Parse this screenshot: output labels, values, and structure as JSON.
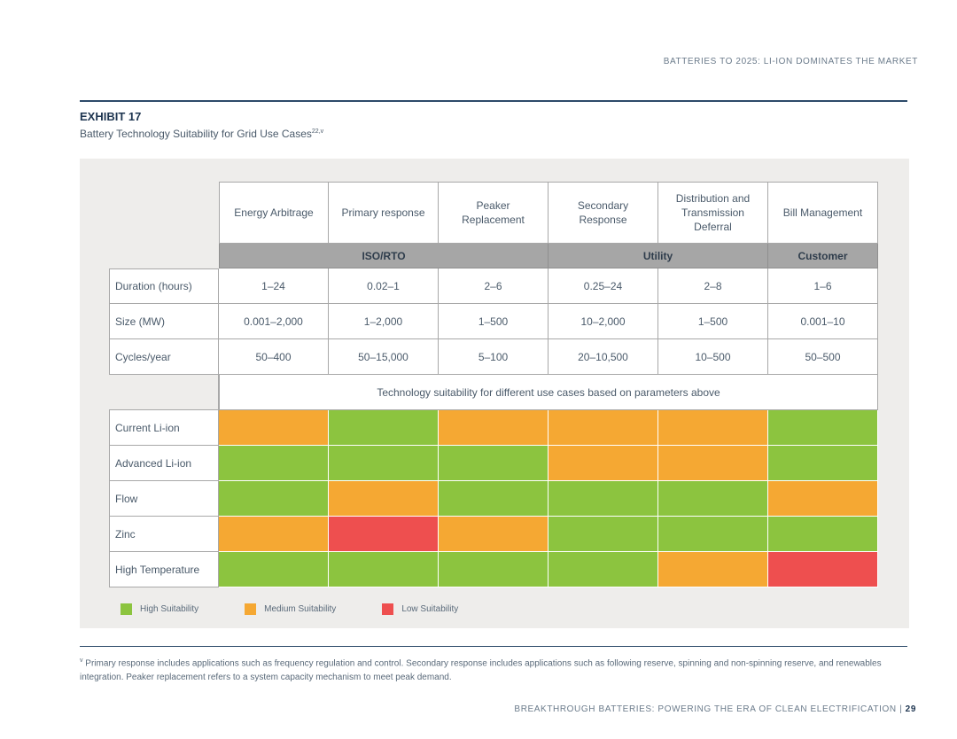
{
  "running_header": "BATTERIES TO 2025: LI-ION DOMINATES THE MARKET",
  "exhibit": {
    "label": "EXHIBIT 17",
    "title": "Battery Technology Suitability for Grid Use Cases",
    "title_superscript": "22,v"
  },
  "table": {
    "columns": [
      "Energy Arbitrage",
      "Primary response",
      "Peaker Replacement",
      "Secondary Response",
      "Distribution and Transmission Deferral",
      "Bill Management"
    ],
    "groups": [
      {
        "label": "ISO/RTO",
        "span": 3
      },
      {
        "label": "Utility",
        "span": 2
      },
      {
        "label": "Customer",
        "span": 1
      }
    ],
    "parameter_rows": [
      {
        "label": "Duration (hours)",
        "values": [
          "1–24",
          "0.02–1",
          "2–6",
          "0.25–24",
          "2–8",
          "1–6"
        ]
      },
      {
        "label": "Size (MW)",
        "values": [
          "0.001–2,000",
          "1–2,000",
          "1–500",
          "10–2,000",
          "1–500",
          "0.001–10"
        ]
      },
      {
        "label": "Cycles/year",
        "values": [
          "50–400",
          "50–15,000",
          "5–100",
          "20–10,500",
          "10–500",
          "50–500"
        ]
      }
    ],
    "suitability_note": "Technology suitability for different use cases based on parameters above",
    "technology_rows": [
      {
        "label": "Current Li-ion",
        "suitability": [
          "medium",
          "high",
          "medium",
          "medium",
          "medium",
          "high"
        ]
      },
      {
        "label": "Advanced Li-ion",
        "suitability": [
          "high",
          "high",
          "high",
          "medium",
          "medium",
          "high"
        ]
      },
      {
        "label": "Flow",
        "suitability": [
          "high",
          "medium",
          "high",
          "high",
          "high",
          "medium"
        ]
      },
      {
        "label": "Zinc",
        "suitability": [
          "medium",
          "low",
          "medium",
          "high",
          "high",
          "high"
        ]
      },
      {
        "label": "High Temperature",
        "suitability": [
          "high",
          "high",
          "high",
          "high",
          "medium",
          "low"
        ]
      }
    ]
  },
  "colors": {
    "high": "#8cc43f",
    "medium": "#f5a833",
    "low": "#ee4f4f"
  },
  "legend": [
    {
      "key": "high",
      "label": "High Suitability"
    },
    {
      "key": "medium",
      "label": "Medium Suitability"
    },
    {
      "key": "low",
      "label": "Low Suitability"
    }
  ],
  "footnote": {
    "marker": "v",
    "text": "Primary response includes applications such as frequency regulation and control. Secondary response includes applications such as following reserve, spinning and non-spinning reserve, and renewables integration. Peaker replacement refers to a system capacity mechanism to meet peak demand."
  },
  "running_footer": {
    "text": "BREAKTHROUGH BATTERIES: POWERING THE ERA OF CLEAN ELECTRIFICATION |",
    "page_number": "29"
  }
}
